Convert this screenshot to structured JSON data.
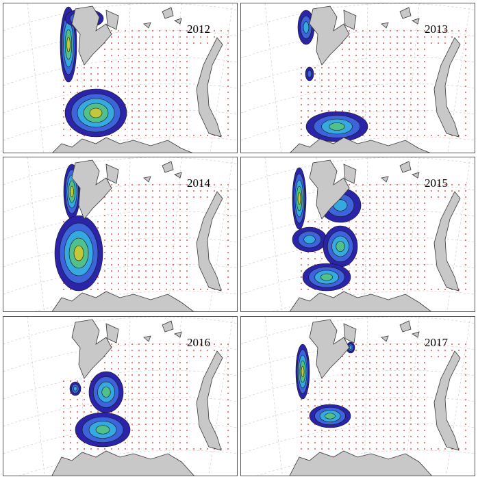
{
  "panels": [
    {
      "label": "2012"
    },
    {
      "label": "2013"
    },
    {
      "label": "2014"
    },
    {
      "label": "2015"
    },
    {
      "label": "2016"
    },
    {
      "label": "2017"
    }
  ]
}
